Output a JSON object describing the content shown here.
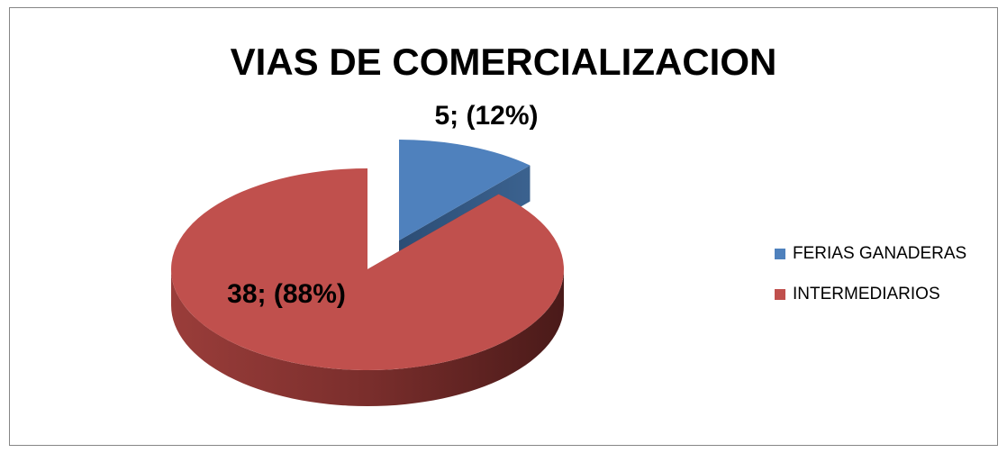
{
  "chart_data": {
    "type": "pie3d",
    "title": "VIAS DE COMERCIALIZACION",
    "categories": [
      "FERIAS GANADERAS",
      "INTERMEDIARIOS"
    ],
    "values": [
      5,
      38
    ],
    "value_labels": [
      "5; (12%)",
      "38; (88%)"
    ],
    "colors": [
      "#4f81bd",
      "#c0504d"
    ],
    "legend": "right"
  }
}
